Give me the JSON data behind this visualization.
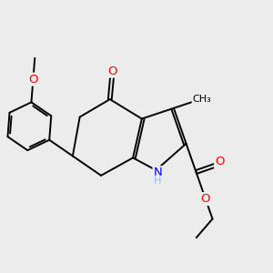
{
  "bg_color": "#ececec",
  "bond_color": "#000000",
  "bond_width": 1.4,
  "atom_colors": {
    "O": "#ff0000",
    "N": "#0000ff",
    "H": "#7fbfff",
    "C": "#000000"
  },
  "font_size": 8.5,
  "fig_size": [
    3.0,
    3.0
  ],
  "dpi": 100
}
